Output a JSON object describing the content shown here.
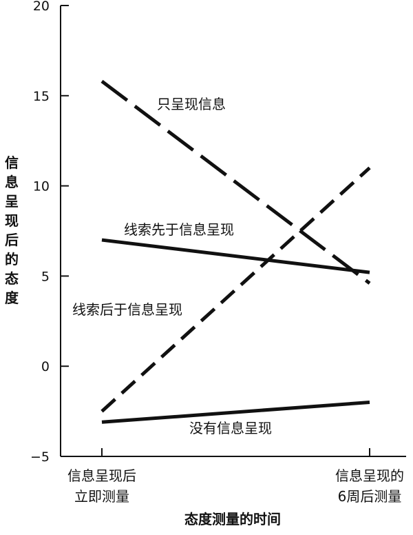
{
  "chart_data": {
    "type": "line",
    "title": "",
    "xlabel": "态度测量的时间",
    "ylabel": "信息呈现后的态度",
    "ylim": [
      -5,
      20
    ],
    "yticks": [
      -5,
      0,
      5,
      10,
      15,
      20
    ],
    "grid": false,
    "categories": [
      [
        "信息呈现后",
        "立即测量"
      ],
      [
        "信息呈现的",
        "6周后测量"
      ]
    ],
    "series": [
      {
        "name": "只呈现信息",
        "values": [
          15.8,
          4.6
        ],
        "style": "long-dash"
      },
      {
        "name": "线索先于信息呈现",
        "values": [
          7.0,
          5.2
        ],
        "style": "solid"
      },
      {
        "name": "线索后于信息呈现",
        "values": [
          -2.5,
          11.0
        ],
        "style": "dash"
      },
      {
        "name": "没有信息呈现",
        "values": [
          -3.1,
          -2.0
        ],
        "style": "solid"
      }
    ],
    "annotations": [
      {
        "text": "只呈现信息",
        "series": 0
      },
      {
        "text": "线索先于信息呈现",
        "series": 1
      },
      {
        "text": "线索后于信息呈现",
        "series": 2
      },
      {
        "text": "没有信息呈现",
        "series": 3
      }
    ],
    "colors": {
      "line": "#111111",
      "axis": "#111111"
    }
  }
}
